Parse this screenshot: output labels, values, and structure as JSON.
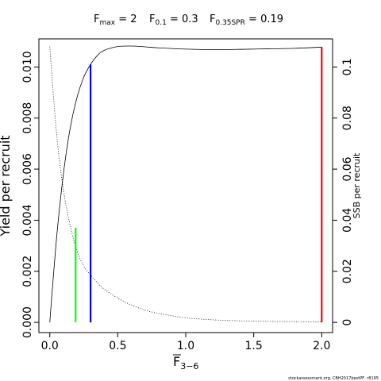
{
  "title": {
    "fmax": {
      "sym": "F",
      "sub": "max",
      "eq": " = 2"
    },
    "f01": {
      "sym": "F",
      "sub": "0.1",
      "eq": " = 0.3"
    },
    "fspr": {
      "sym": "F",
      "sub": "0.35SPR",
      "eq": " = 0.19"
    }
  },
  "xlabel": {
    "sym": "F",
    "sub": "3−6"
  },
  "footer": "stockassessment.org, CBH2017bestPF, r8195",
  "chart_data": {
    "type": "line",
    "xlim": [
      -0.08,
      2.08
    ],
    "ylim_left": [
      -0.0004,
      0.0111
    ],
    "ylim_right": [
      -0.004,
      0.111
    ],
    "x_ticks": [
      0.0,
      0.5,
      1.0,
      1.5,
      2.0
    ],
    "x_tick_labels": [
      "0.0",
      "0.5",
      "1.0",
      "1.5",
      "2.0"
    ],
    "left_ticks": [
      0.0,
      0.002,
      0.004,
      0.006,
      0.008,
      0.01
    ],
    "left_tick_labels": [
      "0.000",
      "0.002",
      "0.004",
      "0.006",
      "0.008",
      "0.010"
    ],
    "right_ticks": [
      0.0,
      0.02,
      0.04,
      0.06,
      0.08,
      0.1
    ],
    "right_tick_labels": [
      "0",
      "0.02",
      "0.04",
      "0.06",
      "0.08",
      "0.1"
    ],
    "ylabel_left": "Yield per recruit",
    "ylabel_right": "SSB per recruit",
    "series": [
      {
        "axis": "left",
        "style": "solid",
        "color": "#000000",
        "x": [
          0.0,
          0.05,
          0.1,
          0.15,
          0.2,
          0.25,
          0.3,
          0.35,
          0.4,
          0.5,
          0.6,
          0.7,
          0.8,
          1.0,
          1.2,
          1.4,
          1.6,
          1.8,
          2.0
        ],
        "y": [
          0.0,
          0.0033,
          0.0058,
          0.0076,
          0.0088,
          0.0096,
          0.0101,
          0.01045,
          0.01065,
          0.0108,
          0.01082,
          0.01079,
          0.01075,
          0.0107,
          0.01068,
          0.01069,
          0.01071,
          0.01073,
          0.01078
        ]
      },
      {
        "axis": "right",
        "style": "dotted",
        "color": "#000000",
        "x": [
          0.0,
          0.05,
          0.1,
          0.15,
          0.2,
          0.25,
          0.3,
          0.35,
          0.4,
          0.5,
          0.6,
          0.7,
          0.8,
          1.0,
          1.2,
          1.4,
          1.6,
          1.8,
          2.0
        ],
        "y": [
          0.108,
          0.074,
          0.052,
          0.038,
          0.028,
          0.022,
          0.0185,
          0.0155,
          0.013,
          0.0095,
          0.0068,
          0.0048,
          0.0035,
          0.0018,
          0.001,
          0.0006,
          0.0004,
          0.0003,
          0.0002
        ]
      }
    ],
    "reference_lines": [
      {
        "name": "F0.35SPR",
        "x": 0.19,
        "y_top": 0.0037,
        "color": "#00ff00"
      },
      {
        "name": "F0.1",
        "x": 0.3,
        "y_top": 0.0101,
        "color": "#0000ff"
      },
      {
        "name": "Fmax",
        "x": 2.0,
        "y_top": 0.01078,
        "color": "#ff0000"
      }
    ]
  }
}
